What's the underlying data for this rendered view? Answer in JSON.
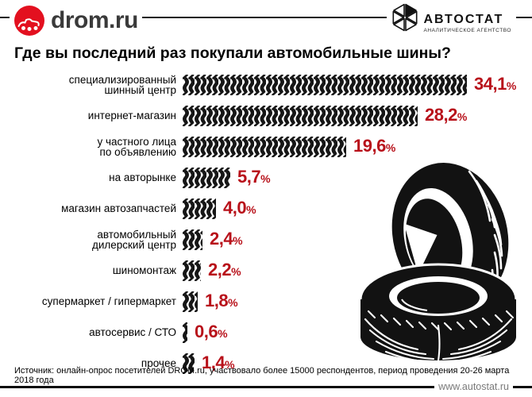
{
  "header": {
    "drom_logo_text": "drom.ru",
    "autostat_name": "АВТОСТАТ",
    "autostat_subtitle": "АНАЛИТИЧЕСКОЕ АГЕНТСТВО"
  },
  "title": "Где вы последний раз покупали автомобильные шины?",
  "chart_data": {
    "type": "bar",
    "orientation": "horizontal",
    "title": "Где вы последний раз покупали автомобильные шины?",
    "unit": "%",
    "categories": [
      "специализированный\nшинный центр",
      "интернет-магазин",
      "у частного лица\nпо объявлению",
      "на авторынке",
      "магазин автозапчастей",
      "автомобильный\nдилерский центр",
      "шиномонтаж",
      "супермаркет / гипермаркет",
      "автосервис / СТО",
      "прочее"
    ],
    "values": [
      34.1,
      28.2,
      19.6,
      5.7,
      4.0,
      2.4,
      2.2,
      1.8,
      0.6,
      1.4
    ],
    "value_labels": [
      "34,1",
      "28,2",
      "19,6",
      "5,7",
      "4,0",
      "2,4",
      "2,2",
      "1,8",
      "0,6",
      "1,4"
    ],
    "xlim": [
      0,
      36
    ],
    "grid": false,
    "legend": false,
    "bar_style": "tire-track-texture",
    "bar_color": "#161616",
    "value_color": "#b8111a"
  },
  "footer": {
    "source": "Источник: онлайн-опрос посетителей DROM.ru, участвовало более 15000 респондентов, период проведения 20-26 марта 2018 года",
    "website": "www.autostat.ru"
  },
  "colors": {
    "accent_red": "#b8111a",
    "drom_red": "#e3101f",
    "ink": "#111111"
  },
  "icons": {
    "drom_logo_icon": "red-circle-with-white-car-doodle",
    "autostat_logo_icon": "hexagon-of-six-triangles",
    "tires_illustration": "two-black-car-tires"
  }
}
